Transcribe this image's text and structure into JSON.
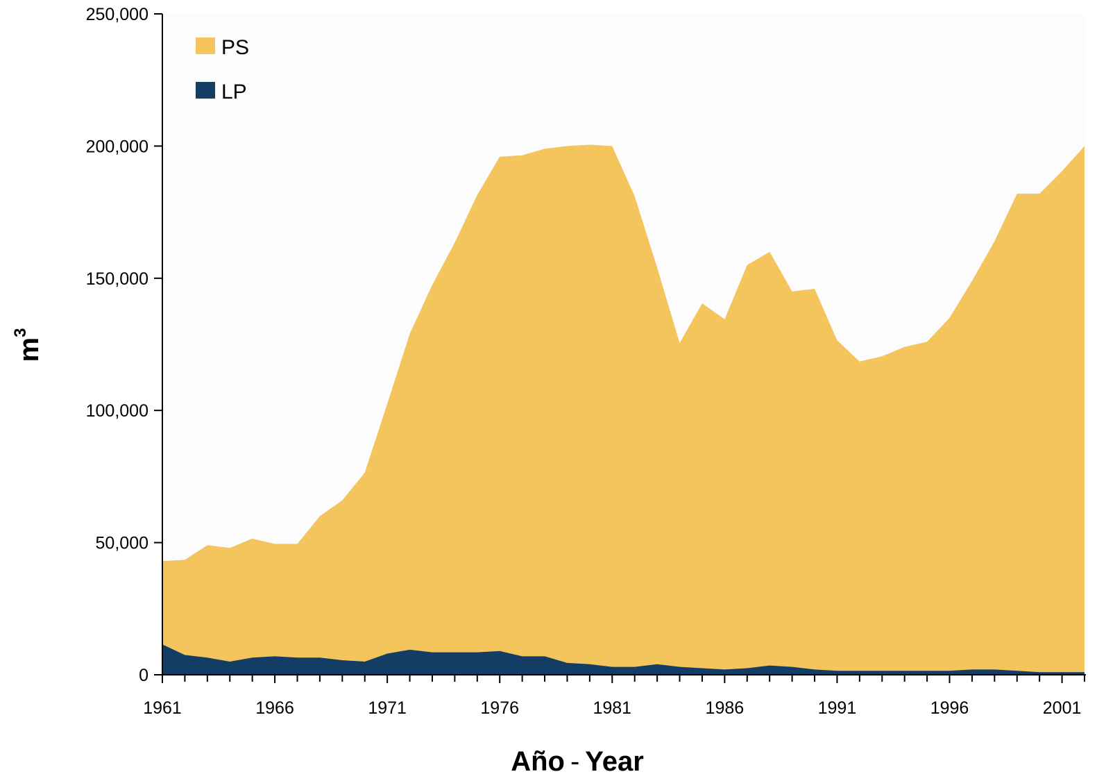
{
  "chart_data": {
    "type": "area",
    "stacked": true,
    "xlabel": "Año",
    "xlabel_separator": "-",
    "xlabel_second": "Year",
    "ylabel": "m",
    "ylabel_superscript": "3",
    "ylim": [
      0,
      250000
    ],
    "xlim": [
      1961,
      2002
    ],
    "y_ticks": [
      0,
      50000,
      100000,
      150000,
      200000,
      250000
    ],
    "y_tick_labels": [
      "0",
      "50,000",
      "100,000",
      "150,000",
      "200,000",
      "250,000"
    ],
    "x_ticks": [
      1961,
      1966,
      1971,
      1976,
      1981,
      1986,
      1991,
      1996,
      2001
    ],
    "x_tick_labels": [
      "1961",
      "1966",
      "1971",
      "1976",
      "1981",
      "1986",
      "1991",
      "1996",
      "2001"
    ],
    "grid": false,
    "legend_position": "top-left",
    "x": [
      1961,
      1962,
      1963,
      1964,
      1965,
      1966,
      1967,
      1968,
      1969,
      1970,
      1971,
      1972,
      1973,
      1974,
      1975,
      1976,
      1977,
      1978,
      1979,
      1980,
      1981,
      1982,
      1983,
      1984,
      1985,
      1986,
      1987,
      1988,
      1989,
      1990,
      1991,
      1992,
      1993,
      1994,
      1995,
      1996,
      1997,
      1998,
      1999,
      2000,
      2001,
      2002
    ],
    "series": [
      {
        "name": "LP",
        "color": "#143d66",
        "values": [
          11500,
          7500,
          6500,
          5000,
          6500,
          7000,
          6500,
          6500,
          5500,
          5000,
          8000,
          9500,
          8500,
          8500,
          8500,
          9000,
          7000,
          7000,
          4500,
          4000,
          3000,
          3000,
          4000,
          3000,
          2500,
          2000,
          2500,
          3500,
          3000,
          2000,
          1500,
          1500,
          1500,
          1500,
          1500,
          1500,
          2000,
          2000,
          1500,
          1000,
          1000,
          1000
        ]
      },
      {
        "name": "PS",
        "color": "#f3c55c",
        "total_values": [
          43000,
          43500,
          49000,
          48000,
          51500,
          49500,
          49500,
          60000,
          66000,
          76500,
          102500,
          129000,
          147500,
          163500,
          181500,
          196000,
          196500,
          199000,
          200000,
          200500,
          200000,
          181000,
          154000,
          125500,
          140500,
          134500,
          155000,
          160000,
          145000,
          146000,
          126500,
          118500,
          120500,
          124000,
          126000,
          135000,
          149000,
          164000,
          182000,
          182000,
          190500,
          200000
        ]
      }
    ]
  }
}
